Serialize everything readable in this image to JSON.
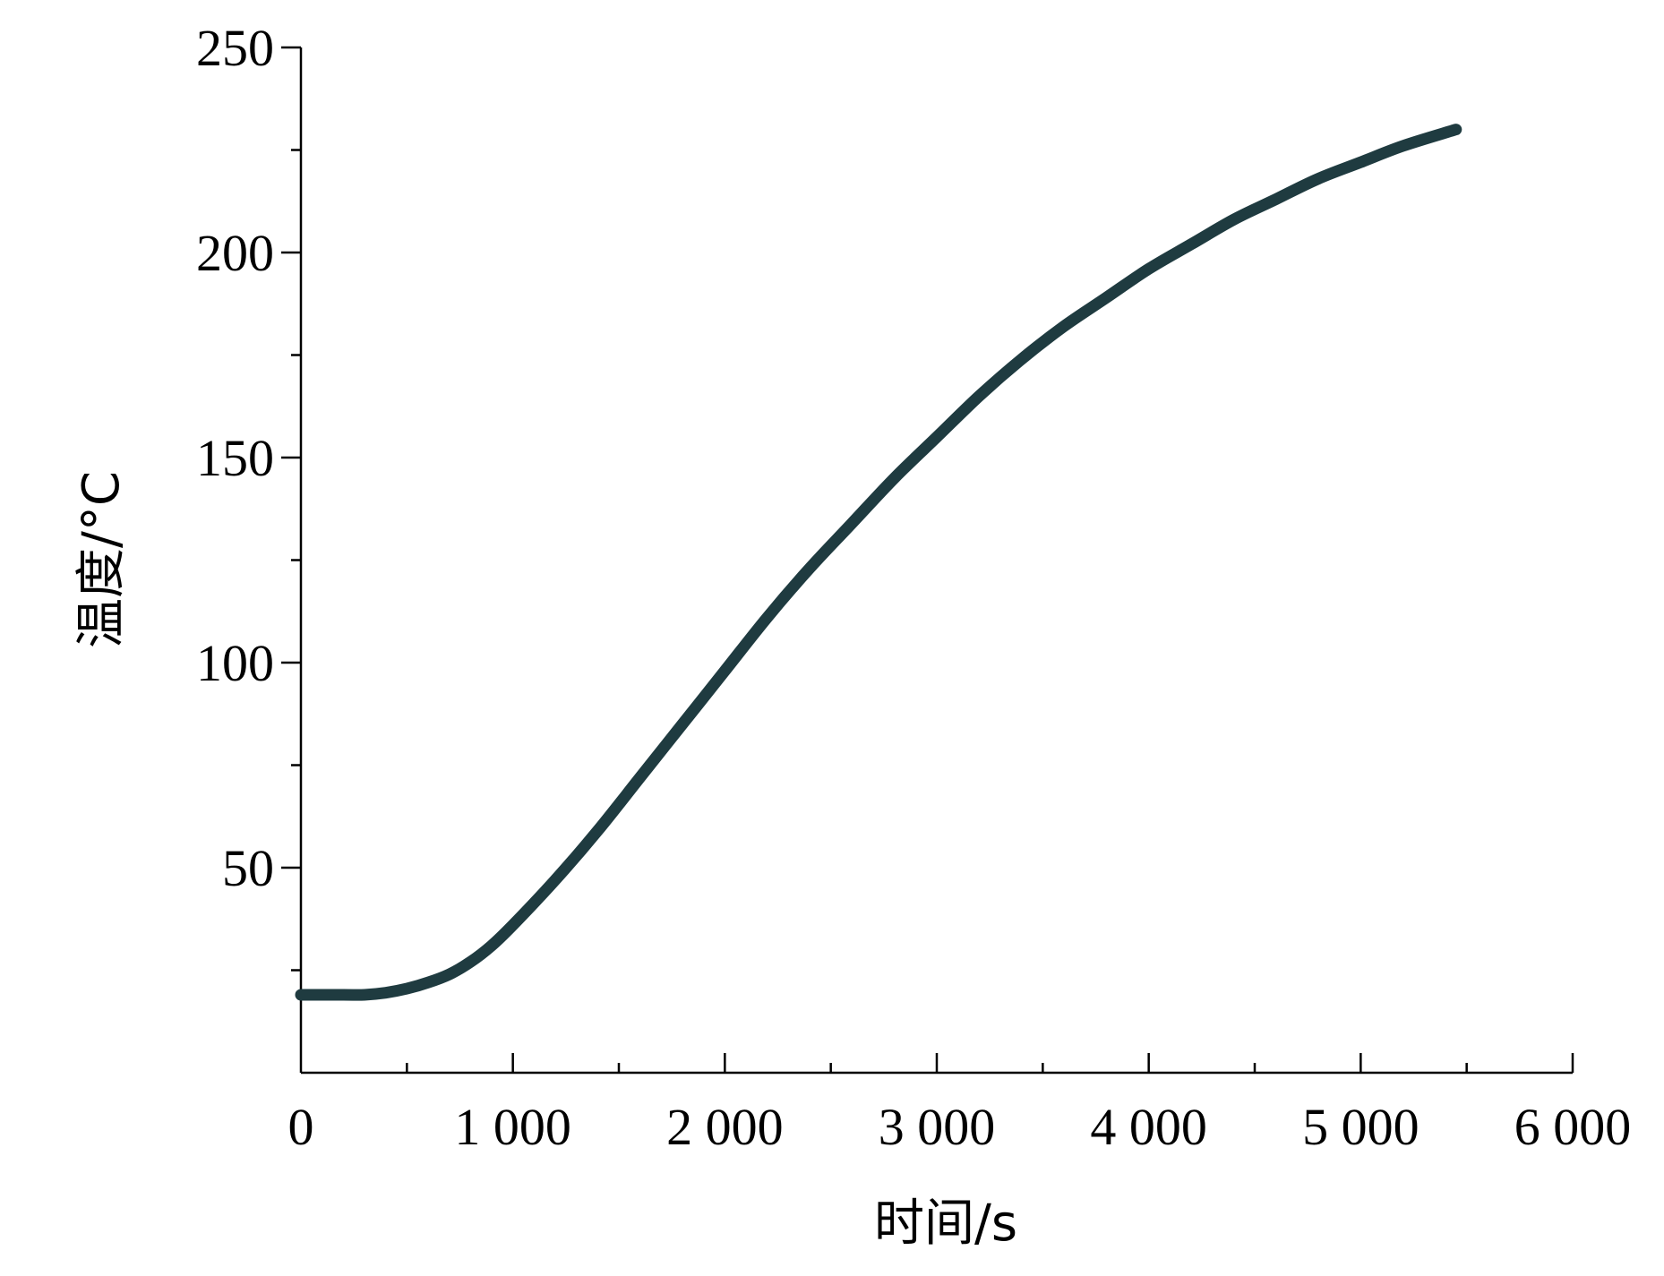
{
  "chart_data": {
    "type": "line",
    "title": "",
    "xlabel": "时间/s",
    "ylabel": "温度/°C",
    "xlim": [
      0,
      6000
    ],
    "ylim": [
      0,
      250
    ],
    "x_ticks": [
      0,
      1000,
      2000,
      3000,
      4000,
      5000,
      6000
    ],
    "x_tick_labels": [
      "0",
      "1 000",
      "2 000",
      "3 000",
      "4 000",
      "5 000",
      "6 000"
    ],
    "y_ticks": [
      50,
      100,
      150,
      200,
      250
    ],
    "y_tick_labels": [
      "50",
      "100",
      "150",
      "200",
      "250"
    ],
    "grid": false,
    "legend": "none",
    "colors": {
      "line": "#1f3b40",
      "axis": "#000000"
    },
    "series": [
      {
        "x": [
          0,
          200,
          300,
          400,
          500,
          600,
          700,
          800,
          900,
          1000,
          1200,
          1400,
          1600,
          1800,
          2000,
          2200,
          2400,
          2600,
          2800,
          3000,
          3200,
          3400,
          3600,
          3800,
          4000,
          4200,
          4400,
          4600,
          4800,
          5000,
          5200,
          5450
        ],
        "y": [
          19,
          19,
          19,
          19.5,
          20.5,
          22,
          24,
          27,
          31,
          36,
          47,
          59,
          72,
          85,
          98,
          111,
          123,
          134,
          145,
          155,
          165,
          174,
          182,
          189,
          196,
          202,
          208,
          213,
          218,
          222,
          226,
          230
        ]
      }
    ]
  }
}
